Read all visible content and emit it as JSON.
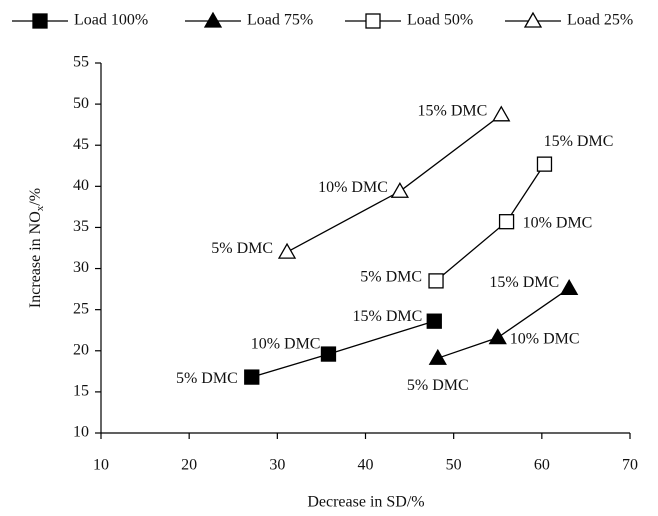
{
  "chart_data": {
    "type": "line",
    "x_label": "Decrease in SD/%",
    "y_label": {
      "text": "Increase in NO",
      "subscript": "x",
      "suffix": "/%"
    },
    "xlim": [
      10,
      70
    ],
    "xticks": [
      10,
      20,
      30,
      40,
      50,
      60,
      70
    ],
    "ylim": [
      10,
      55
    ],
    "yticks": [
      10,
      15,
      20,
      25,
      30,
      35,
      40,
      45,
      50,
      55
    ],
    "grid": false,
    "legend": "top",
    "series": [
      {
        "name": "Load 100%",
        "color": "#000000",
        "marker": "square",
        "filled": true,
        "x": [
          27.1,
          35.8,
          47.8
        ],
        "values": [
          16.8,
          19.6,
          23.6
        ],
        "labels": [
          "5% DMC",
          "10% DMC",
          "15% DMC"
        ]
      },
      {
        "name": "Load 75%",
        "color": "#000000",
        "marker": "triangle",
        "filled": true,
        "x": [
          48.2,
          55,
          63.1
        ],
        "values": [
          19.1,
          21.6,
          27.6
        ],
        "labels": [
          "5% DMC",
          "10% DMC",
          "15% DMC"
        ]
      },
      {
        "name": "Load 50%",
        "color": "#000000",
        "marker": "square",
        "filled": false,
        "x": [
          48,
          56,
          60.3
        ],
        "values": [
          28.5,
          35.7,
          42.7
        ],
        "labels": [
          "5% DMC",
          "10% DMC",
          "15% DMC"
        ]
      },
      {
        "name": "Load 25%",
        "color": "#000000",
        "marker": "triangle",
        "filled": false,
        "x": [
          31.1,
          43.9,
          55.4
        ],
        "values": [
          32,
          39.4,
          48.7
        ],
        "labels": [
          "5% DMC",
          "10% DMC",
          "15% DMC"
        ]
      }
    ]
  }
}
